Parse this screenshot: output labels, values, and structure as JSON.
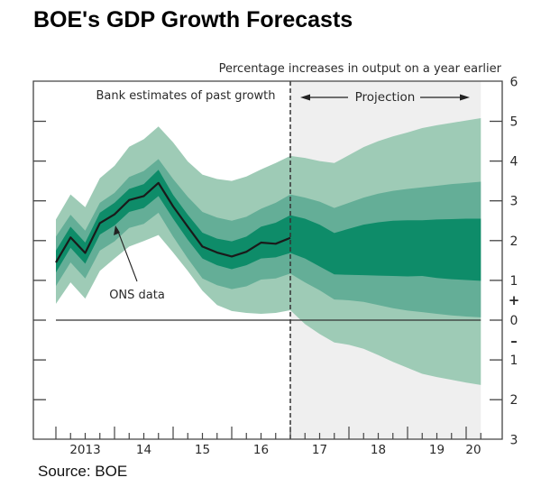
{
  "title": "BOE's GDP Growth Forecasts",
  "source": "Source: BOE",
  "chart_data": {
    "type": "area",
    "subtype": "fan-chart",
    "title": "BOE's GDP Growth Forecasts",
    "ylabel": "Percentage increases in output on a year earlier",
    "xlabel": "",
    "ylim": [
      -3,
      6
    ],
    "xlim": [
      2012.6,
      2020.6
    ],
    "y_ticks": [
      6,
      5,
      4,
      3,
      2,
      1,
      0,
      -1,
      -2,
      -3
    ],
    "y_tick_labels": [
      "6",
      "5",
      "4",
      "3",
      "2",
      "1",
      "0",
      "1",
      "2",
      "3"
    ],
    "y_sign_labels": {
      "plus": "+",
      "minus": "–"
    },
    "x_tick_labels": [
      {
        "label": "2013",
        "year": 2013
      },
      {
        "label": "14",
        "year": 2014
      },
      {
        "label": "15",
        "year": 2015
      },
      {
        "label": "16",
        "year": 2016
      },
      {
        "label": "17",
        "year": 2017
      },
      {
        "label": "18",
        "year": 2018
      },
      {
        "label": "19",
        "year": 2019
      },
      {
        "label": "20",
        "year": 2020
      }
    ],
    "annotations": {
      "past": "Bank estimates of past growth",
      "projection": "Projection",
      "ons": "ONS data"
    },
    "projection_start": 2017.0,
    "projection_end": 2020.25,
    "colors": {
      "outer": "#9ecbb6",
      "middle": "#64ae97",
      "inner": "#0e8c69",
      "line": "#1a1a1a",
      "projection_bg": "#efefef"
    },
    "x": [
      2013.0,
      2013.25,
      2013.5,
      2013.75,
      2014.0,
      2014.25,
      2014.5,
      2014.75,
      2015.0,
      2015.25,
      2015.5,
      2015.75,
      2016.0,
      2016.25,
      2016.5,
      2016.75,
      2017.0,
      2017.25,
      2017.5,
      2017.75,
      2018.0,
      2018.25,
      2018.5,
      2018.75,
      2019.0,
      2019.25,
      2019.5,
      2019.75,
      2020.0,
      2020.25
    ],
    "series": [
      {
        "name": "ONS data",
        "values": [
          1.45,
          2.08,
          1.69,
          2.44,
          2.66,
          3.02,
          3.12,
          3.45,
          2.86,
          2.35,
          1.85,
          1.7,
          1.6,
          1.72,
          1.95,
          1.92,
          2.07
        ]
      },
      {
        "name": "outer_upper",
        "values": [
          2.53,
          3.16,
          2.84,
          3.57,
          3.88,
          4.36,
          4.55,
          4.87,
          4.47,
          3.99,
          3.66,
          3.55,
          3.5,
          3.61,
          3.79,
          3.95,
          4.13,
          4.08,
          4.0,
          3.95,
          4.15,
          4.35,
          4.5,
          4.62,
          4.72,
          4.83,
          4.9,
          4.96,
          5.02,
          5.08
        ]
      },
      {
        "name": "middle_upper",
        "values": [
          2.1,
          2.65,
          2.25,
          2.95,
          3.2,
          3.6,
          3.75,
          4.05,
          3.55,
          3.1,
          2.72,
          2.58,
          2.5,
          2.6,
          2.8,
          2.95,
          3.16,
          3.08,
          2.98,
          2.82,
          2.95,
          3.08,
          3.18,
          3.25,
          3.3,
          3.34,
          3.38,
          3.42,
          3.45,
          3.48
        ]
      },
      {
        "name": "inner_upper",
        "values": [
          1.75,
          2.35,
          1.95,
          2.7,
          2.95,
          3.3,
          3.42,
          3.78,
          3.15,
          2.65,
          2.2,
          2.05,
          1.98,
          2.1,
          2.35,
          2.45,
          2.64,
          2.55,
          2.4,
          2.19,
          2.3,
          2.4,
          2.46,
          2.5,
          2.51,
          2.51,
          2.53,
          2.54,
          2.55,
          2.55
        ]
      },
      {
        "name": "inner_lower",
        "values": [
          1.2,
          1.82,
          1.42,
          2.15,
          2.38,
          2.72,
          2.82,
          3.12,
          2.55,
          2.02,
          1.55,
          1.38,
          1.28,
          1.38,
          1.55,
          1.58,
          1.69,
          1.55,
          1.35,
          1.15,
          1.14,
          1.13,
          1.12,
          1.11,
          1.1,
          1.11,
          1.06,
          1.03,
          1.01,
          0.99
        ]
      },
      {
        "name": "middle_lower",
        "values": [
          0.86,
          1.45,
          1.05,
          1.75,
          1.98,
          2.32,
          2.42,
          2.7,
          2.1,
          1.55,
          1.05,
          0.88,
          0.78,
          0.85,
          1.02,
          1.05,
          1.17,
          0.95,
          0.75,
          0.52,
          0.5,
          0.46,
          0.38,
          0.3,
          0.24,
          0.2,
          0.16,
          0.12,
          0.09,
          0.07
        ]
      },
      {
        "name": "outer_lower",
        "values": [
          0.41,
          0.95,
          0.54,
          1.24,
          1.55,
          1.85,
          1.99,
          2.14,
          1.7,
          1.24,
          0.74,
          0.38,
          0.23,
          0.18,
          0.16,
          0.18,
          0.25,
          -0.1,
          -0.35,
          -0.56,
          -0.62,
          -0.72,
          -0.88,
          -1.05,
          -1.2,
          -1.35,
          -1.43,
          -1.5,
          -1.57,
          -1.63
        ]
      }
    ]
  }
}
